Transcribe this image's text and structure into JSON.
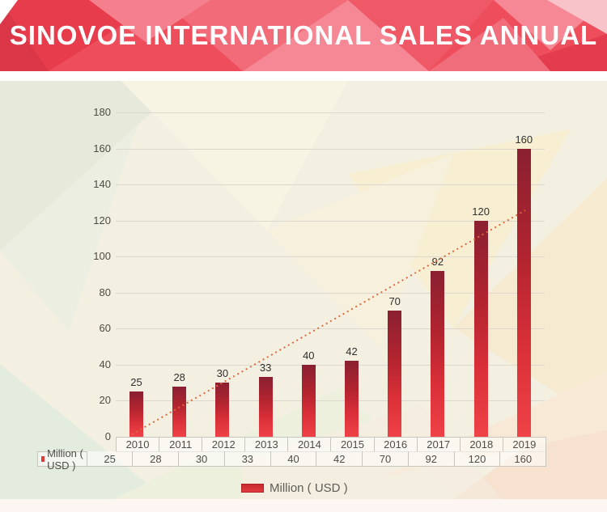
{
  "header": {
    "title": "SINOVOE INTERNATIONAL SALES ANNUAL"
  },
  "colors": {
    "banner_base": "#ee4e5c",
    "banner_dark": "#da3647",
    "bar_top": "#8a2031",
    "bar_bottom": "#ef4247",
    "trendline": "#dd6a3f",
    "gridline": "#dcd8cf",
    "table_border": "#c6c6bf",
    "panel_base": "#f3f0e1"
  },
  "chart_data": {
    "type": "bar",
    "title": "SINOVOE INTERNATIONAL SALES ANNUAL",
    "categories": [
      "2010",
      "2011",
      "2012",
      "2013",
      "2014",
      "2015",
      "2016",
      "2017",
      "2018",
      "2019"
    ],
    "series": [
      {
        "name": "Million ( USD )",
        "values": [
          25,
          28,
          30,
          33,
          40,
          42,
          70,
          92,
          120,
          160
        ]
      }
    ],
    "xlabel": "",
    "ylabel": "",
    "ylim": [
      0,
      180
    ],
    "yticks": [
      0,
      20,
      40,
      60,
      80,
      100,
      120,
      140,
      160,
      180
    ],
    "grid": true,
    "legend_position": "bottom",
    "trendline": true,
    "data_labels": true
  },
  "table": {
    "row_label": "Million ( USD )",
    "row_values": [
      "25",
      "28",
      "30",
      "33",
      "40",
      "42",
      "70",
      "92",
      "120",
      "160"
    ]
  },
  "legend": {
    "label": "Million ( USD )"
  }
}
